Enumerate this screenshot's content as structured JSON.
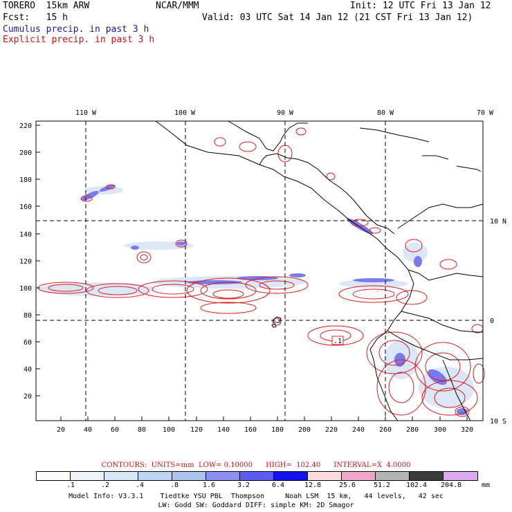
{
  "header": {
    "model_name": "TORERO  15km ARW",
    "center": "NCAR/MMM",
    "init": "Init: 12 UTC Fri 13 Jan 12",
    "forecast": "Fcst:   15 h",
    "valid": "Valid: 03 UTC Sat 14 Jan 12 (21 CST Fri 13 Jan 12)",
    "cumulus_label": "Cumulus precip. in past 3 h",
    "explicit_label": "Explicit precip. in past 3 h",
    "cumulus_color": "#1a1a9a",
    "explicit_color": "#d01010"
  },
  "map": {
    "top_lon_labels": [
      "110 W",
      "100 W",
      "90 W",
      "80 W",
      "70 W"
    ],
    "right_lat_labels": [
      "10 N",
      "0",
      "10 S"
    ],
    "left_y_ticks": [
      "220",
      "200",
      "180",
      "160",
      "140",
      "120",
      "100",
      "80",
      "60",
      "40",
      "20"
    ],
    "bottom_x_ticks": [
      "20",
      "40",
      "60",
      "80",
      "100",
      "120",
      "140",
      "160",
      "180",
      "200",
      "220",
      "240",
      "260",
      "280",
      "300",
      "320"
    ],
    "field_annotation": ".1"
  },
  "contours": {
    "text": "CONTOURS:  UNITS=mm  LOW= 0.10000      HIGH=  102.40      INTERVAL=X  4.0000"
  },
  "colorbar": {
    "colors": [
      "#ffffff",
      "#ebf3fb",
      "#d5e6f6",
      "#bcd6f0",
      "#a9c2ee",
      "#8c8ef2",
      "#5c5cf0",
      "#1414f0",
      "#ffdcdc",
      "#f0a6c8",
      "#b4b4b4",
      "#3c3c3c",
      "#dcaaf0"
    ],
    "labels": [
      ".1",
      ".2",
      ".4",
      ".8",
      "1.6",
      "3.2",
      "6.4",
      "12.8",
      "25.6",
      "51.2",
      "102.4",
      "204.8"
    ],
    "unit": "mm"
  },
  "footer": {
    "line1": "Model Info: V3.3.1    Tiedtke YSU PBL  Thompson     Noah LSM  15 km,   44 levels,   42 sec",
    "line2": "LW: Godd SW: Goddard DIFF: simple KM: 2D Smagor"
  }
}
